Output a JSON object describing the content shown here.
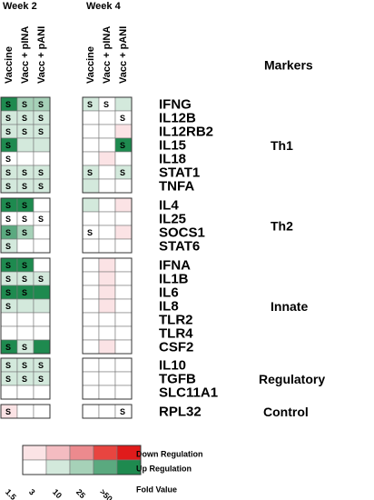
{
  "headers": {
    "weeks": [
      "Week 2",
      "Week 4"
    ],
    "columns": [
      "Vaccine",
      "Vacc + pINA",
      "Vacc + pANI",
      "Vaccine",
      "Vacc + pINA",
      "Vacc + pANI"
    ],
    "markers_title": "Markers"
  },
  "groups": [
    {
      "label": "Th1",
      "rows": [
        {
          "gene": "IFNG",
          "cells": [
            {
              "color": "#1e8a4f",
              "label": "S"
            },
            {
              "color": "#a6d1b8",
              "label": "S"
            },
            {
              "color": "#a6d1b8",
              "label": "S"
            },
            {
              "color": "#d3e9dc",
              "label": "S"
            },
            {
              "color": "#ffffff",
              "label": "S"
            },
            {
              "color": "#d3e9dc"
            }
          ]
        },
        {
          "gene": "IL12B",
          "cells": [
            {
              "color": "#d3e9dc",
              "label": "S"
            },
            {
              "color": "#d3e9dc",
              "label": "S"
            },
            {
              "color": "#d3e9dc",
              "label": "S"
            },
            {
              "color": "#ffffff"
            },
            {
              "color": "#ffffff"
            },
            {
              "color": "#ffffff",
              "label": "S"
            }
          ]
        },
        {
          "gene": "IL12RB2",
          "cells": [
            {
              "color": "#d3e9dc",
              "label": "S"
            },
            {
              "color": "#d3e9dc",
              "label": "S"
            },
            {
              "color": "#d3e9dc",
              "label": "S"
            },
            {
              "color": "#ffffff"
            },
            {
              "color": "#ffffff"
            },
            {
              "color": "#fbe3e5"
            }
          ]
        },
        {
          "gene": "IL15",
          "cells": [
            {
              "color": "#1e8a4f",
              "label": "S"
            },
            {
              "color": "#d3e9dc"
            },
            {
              "color": "#d3e9dc"
            },
            {
              "color": "#ffffff"
            },
            {
              "color": "#ffffff"
            },
            {
              "color": "#1e8a4f",
              "label": "S"
            }
          ]
        },
        {
          "gene": "IL18",
          "cells": [
            {
              "color": "#ffffff",
              "label": "S"
            },
            {
              "color": "#ffffff"
            },
            {
              "color": "#ffffff"
            },
            {
              "color": "#ffffff"
            },
            {
              "color": "#fbe3e5"
            },
            {
              "color": "#ffffff"
            }
          ]
        },
        {
          "gene": "STAT1",
          "cells": [
            {
              "color": "#d3e9dc",
              "label": "S"
            },
            {
              "color": "#d3e9dc",
              "label": "S"
            },
            {
              "color": "#d3e9dc",
              "label": "S"
            },
            {
              "color": "#d3e9dc",
              "label": "S"
            },
            {
              "color": "#ffffff"
            },
            {
              "color": "#d3e9dc",
              "label": "S"
            }
          ]
        },
        {
          "gene": "TNFA",
          "cells": [
            {
              "color": "#d3e9dc",
              "label": "S"
            },
            {
              "color": "#d3e9dc",
              "label": "S"
            },
            {
              "color": "#d3e9dc",
              "label": "S"
            },
            {
              "color": "#d3e9dc"
            },
            {
              "color": "#ffffff"
            },
            {
              "color": "#ffffff"
            }
          ]
        }
      ]
    },
    {
      "label": "Th2",
      "rows": [
        {
          "gene": "IL4",
          "cells": [
            {
              "color": "#1e8a4f",
              "label": "S"
            },
            {
              "color": "#1e8a4f",
              "label": "S"
            },
            {
              "color": "#ffffff"
            },
            {
              "color": "#d3e9dc"
            },
            {
              "color": "#ffffff"
            },
            {
              "color": "#fbe3e5"
            }
          ]
        },
        {
          "gene": "IL25",
          "cells": [
            {
              "color": "#ffffff",
              "label": "S"
            },
            {
              "color": "#ffffff",
              "label": "S"
            },
            {
              "color": "#ffffff",
              "label": "S"
            },
            {
              "color": "#ffffff"
            },
            {
              "color": "#ffffff"
            },
            {
              "color": "#ffffff"
            }
          ]
        },
        {
          "gene": "SOCS1",
          "cells": [
            {
              "color": "#5aa97f",
              "label": "S"
            },
            {
              "color": "#a6d1b8",
              "label": "S"
            },
            {
              "color": "#ffffff"
            },
            {
              "color": "#ffffff",
              "label": "S"
            },
            {
              "color": "#ffffff"
            },
            {
              "color": "#fbe3e5"
            }
          ]
        },
        {
          "gene": "STAT6",
          "cells": [
            {
              "color": "#d3e9dc",
              "label": "S"
            },
            {
              "color": "#ffffff"
            },
            {
              "color": "#ffffff"
            },
            {
              "color": "#ffffff"
            },
            {
              "color": "#ffffff"
            },
            {
              "color": "#ffffff"
            }
          ]
        }
      ]
    },
    {
      "label": "Innate",
      "rows": [
        {
          "gene": "IFNA",
          "cells": [
            {
              "color": "#1e8a4f",
              "label": "S"
            },
            {
              "color": "#1e8a4f",
              "label": "S"
            },
            {
              "color": "#ffffff"
            },
            {
              "color": "#ffffff"
            },
            {
              "color": "#fbe3e5"
            },
            {
              "color": "#ffffff"
            }
          ]
        },
        {
          "gene": "IL1B",
          "cells": [
            {
              "color": "#d3e9dc",
              "label": "S"
            },
            {
              "color": "#d3e9dc",
              "label": "S"
            },
            {
              "color": "#d3e9dc",
              "label": "S"
            },
            {
              "color": "#ffffff"
            },
            {
              "color": "#fbe3e5"
            },
            {
              "color": "#ffffff"
            }
          ]
        },
        {
          "gene": "IL6",
          "cells": [
            {
              "color": "#1e8a4f",
              "label": "S"
            },
            {
              "color": "#1e8a4f",
              "label": "S"
            },
            {
              "color": "#1e8a4f"
            },
            {
              "color": "#ffffff"
            },
            {
              "color": "#fbe3e5"
            },
            {
              "color": "#ffffff"
            }
          ]
        },
        {
          "gene": "IL8",
          "cells": [
            {
              "color": "#d3e9dc",
              "label": "S"
            },
            {
              "color": "#d3e9dc"
            },
            {
              "color": "#d3e9dc"
            },
            {
              "color": "#ffffff"
            },
            {
              "color": "#fbe3e5"
            },
            {
              "color": "#ffffff"
            }
          ]
        },
        {
          "gene": "TLR2",
          "cells": [
            {
              "color": "#ffffff"
            },
            {
              "color": "#ffffff"
            },
            {
              "color": "#ffffff"
            },
            {
              "color": "#ffffff"
            },
            {
              "color": "#ffffff"
            },
            {
              "color": "#ffffff"
            }
          ]
        },
        {
          "gene": "TLR4",
          "cells": [
            {
              "color": "#ffffff"
            },
            {
              "color": "#ffffff"
            },
            {
              "color": "#ffffff"
            },
            {
              "color": "#ffffff"
            },
            {
              "color": "#ffffff"
            },
            {
              "color": "#ffffff"
            }
          ]
        },
        {
          "gene": "CSF2",
          "cells": [
            {
              "color": "#1e8a4f",
              "label": "S"
            },
            {
              "color": "#d3e9dc",
              "label": "S"
            },
            {
              "color": "#1e8a4f"
            },
            {
              "color": "#ffffff"
            },
            {
              "color": "#fbe3e5"
            },
            {
              "color": "#ffffff"
            }
          ]
        }
      ]
    },
    {
      "label": "Regulatory",
      "rows": [
        {
          "gene": "IL10",
          "cells": [
            {
              "color": "#d3e9dc",
              "label": "S"
            },
            {
              "color": "#d3e9dc",
              "label": "S"
            },
            {
              "color": "#d3e9dc",
              "label": "S"
            },
            {
              "color": "#ffffff"
            },
            {
              "color": "#ffffff"
            },
            {
              "color": "#ffffff"
            }
          ]
        },
        {
          "gene": "TGFB",
          "cells": [
            {
              "color": "#d3e9dc",
              "label": "S"
            },
            {
              "color": "#d3e9dc",
              "label": "S"
            },
            {
              "color": "#d3e9dc",
              "label": "S"
            },
            {
              "color": "#ffffff"
            },
            {
              "color": "#ffffff"
            },
            {
              "color": "#ffffff"
            }
          ]
        },
        {
          "gene": "SLC11A1",
          "cells": [
            {
              "color": "#ffffff"
            },
            {
              "color": "#ffffff"
            },
            {
              "color": "#ffffff"
            },
            {
              "color": "#ffffff"
            },
            {
              "color": "#ffffff"
            },
            {
              "color": "#ffffff"
            }
          ]
        }
      ]
    },
    {
      "label": "Control",
      "rows": [
        {
          "gene": "RPL32",
          "cells": [
            {
              "color": "#fbe3e5",
              "label": "S"
            },
            {
              "color": "#ffffff"
            },
            {
              "color": "#ffffff"
            },
            {
              "color": "#ffffff"
            },
            {
              "color": "#ffffff"
            },
            {
              "color": "#ffffff",
              "label": "S"
            }
          ]
        }
      ]
    }
  ],
  "legend": {
    "rows": [
      {
        "label": "Down Regulation",
        "colors": [
          "#fbe3e5",
          "#f4bcc1",
          "#ec8a8e",
          "#e84540",
          "#e01b1b"
        ]
      },
      {
        "label": "Up Regulation",
        "colors": [
          "#ffffff",
          "#d3e9dc",
          "#a6d1b8",
          "#5aa97f",
          "#1e8a4f"
        ]
      }
    ],
    "ticks": [
      "1.5",
      "3",
      "10",
      "25",
      ">50"
    ],
    "title": "Fold Value"
  }
}
